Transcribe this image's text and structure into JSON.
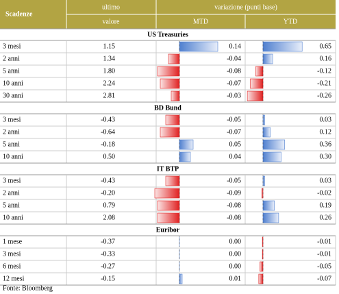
{
  "header": {
    "scadenze": "Scadenze",
    "last_1": "ultimo",
    "last_2": "valore",
    "group": "variazione (punti base)",
    "mtd": "MTD",
    "ytd": "YTD"
  },
  "sections": [
    {
      "title": "US Treasuries",
      "rows": [
        [
          "3 mesi",
          1.15,
          0.14,
          0.65
        ],
        [
          "2 anni",
          1.34,
          -0.04,
          0.16
        ],
        [
          "5 anni",
          {
            "value": 1.8,
            "label": "1.80"
          },
          -0.08,
          -0.12
        ],
        [
          "10 anni",
          2.24,
          -0.07,
          -0.21
        ],
        [
          "30 anni",
          2.81,
          -0.03,
          -0.26
        ]
      ]
    },
    {
      "title": "BD Bund",
      "rows": [
        [
          "3 mesi",
          -0.43,
          -0.05,
          0.03
        ],
        [
          "2 anni",
          -0.64,
          -0.07,
          0.12
        ],
        [
          "5 anni",
          -0.18,
          0.05,
          0.36
        ],
        [
          "10 anni",
          {
            "value": 0.5,
            "label": "0.50"
          },
          0.04,
          {
            "value": 0.3,
            "label": "0.30"
          }
        ]
      ]
    },
    {
      "title": "IT BTP",
      "rows": [
        [
          "3 mesi",
          -0.43,
          -0.05,
          0.03
        ],
        [
          "2 anni",
          {
            "value": -0.2,
            "label": "-0.20"
          },
          -0.09,
          -0.02
        ],
        [
          "5 anni",
          0.79,
          -0.08,
          0.19
        ],
        [
          "10 anni",
          2.08,
          -0.08,
          0.26
        ]
      ]
    },
    {
      "title": "Euribor",
      "rows": [
        [
          "1 mese",
          -0.37,
          {
            "value": 0,
            "label": "0.00"
          },
          -0.01
        ],
        [
          "3 mesi",
          -0.33,
          {
            "value": 0,
            "label": "0.00"
          },
          -0.01
        ],
        [
          "6 mesi",
          -0.27,
          {
            "value": 0,
            "label": "0.00"
          },
          -0.05
        ],
        [
          "12 mesi",
          -0.15,
          0.01,
          -0.07
        ]
      ]
    }
  ],
  "source": "Fonte: Bloomberg"
}
